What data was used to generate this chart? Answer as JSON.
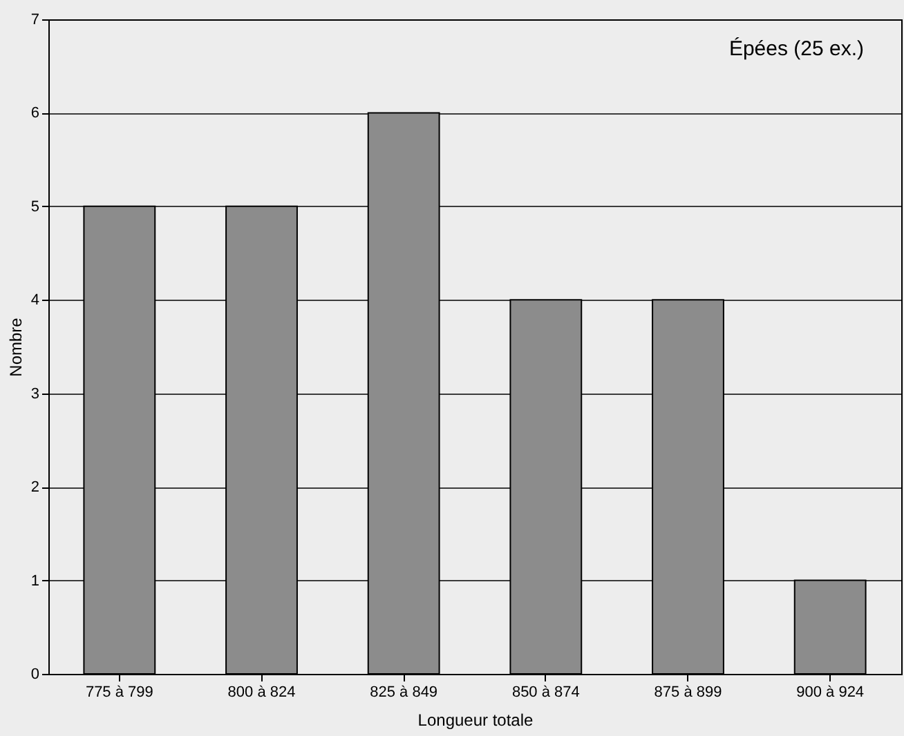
{
  "chart_data": {
    "type": "bar",
    "xlabel": "Longueur totale",
    "ylabel": "Nombre",
    "annotations": [
      "Épées (25 ex.)"
    ],
    "categories": [
      "775 à 799",
      "800 à 824",
      "825 à 849",
      "850 à 874",
      "875 à 899",
      "900 à 924"
    ],
    "values": [
      5,
      5,
      6,
      4,
      4,
      1
    ],
    "color": "#8c8c8c",
    "ylim": [
      0,
      7
    ],
    "yticks": [
      0,
      1,
      2,
      3,
      4,
      5,
      6,
      7
    ],
    "grid": "y"
  }
}
